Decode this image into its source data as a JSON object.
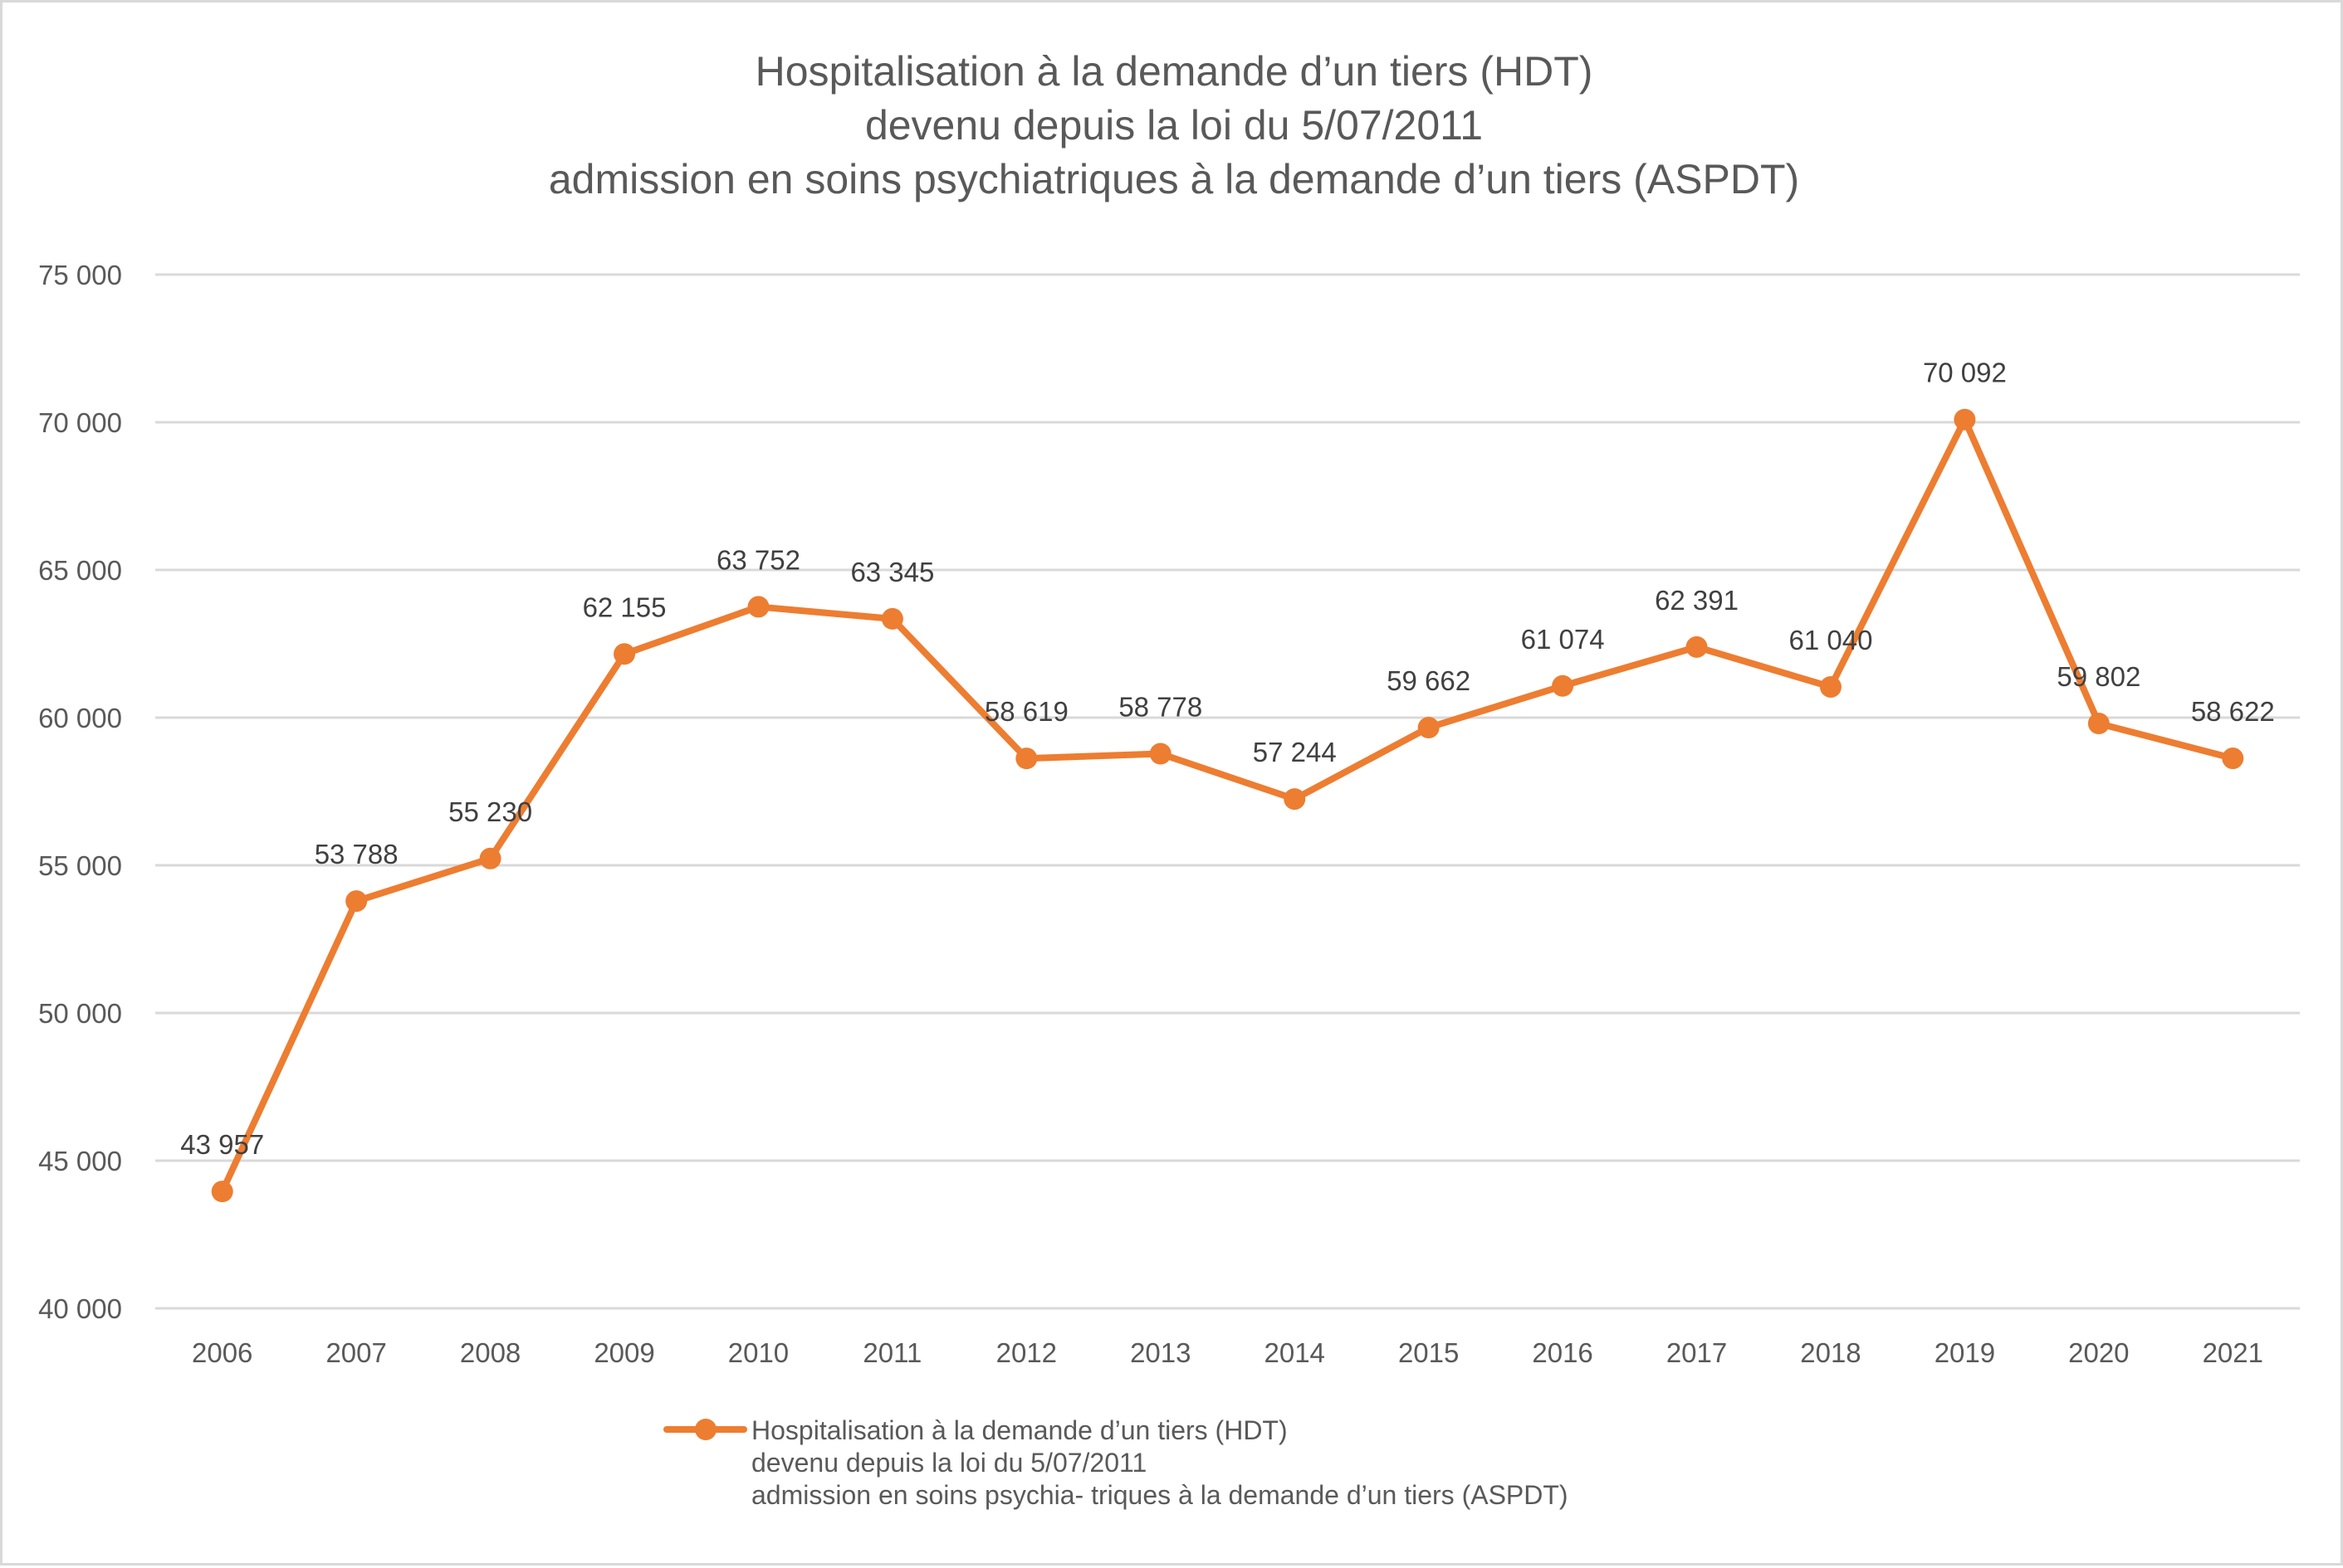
{
  "chart_data": {
    "type": "line",
    "title": [
      "Hospitalisation à la demande d’un tiers (HDT)",
      "devenu depuis la loi du 5/07/2011",
      "admission en soins psychiatriques à la demande d’un tiers (ASPDT)"
    ],
    "xlabel": "",
    "ylabel": "",
    "categories": [
      "2006",
      "2007",
      "2008",
      "2009",
      "2010",
      "2011",
      "2012",
      "2013",
      "2014",
      "2015",
      "2016",
      "2017",
      "2018",
      "2019",
      "2020",
      "2021"
    ],
    "series": [
      {
        "name": "Hospitalisation à la demande d’un tiers (HDT) devenu depuis la loi du 5/07/2011 admission en soins psychia- triques à la demande d’un tiers (ASPDT)",
        "color": "#ED7D31",
        "values": [
          43957,
          53788,
          55230,
          62155,
          63752,
          63345,
          58619,
          58778,
          57244,
          59662,
          61074,
          62391,
          61040,
          70092,
          59802,
          58622
        ],
        "data_labels": [
          "43 957",
          "53 788",
          "55 230",
          "62 155",
          "63 752",
          "63 345",
          "58 619",
          "58 778",
          "57 244",
          "59 662",
          "61 074",
          "62 391",
          "61 040",
          "70 092",
          "59 802",
          "58 622"
        ]
      }
    ],
    "ylim": [
      40000,
      75000
    ],
    "y_ticks": [
      40000,
      45000,
      50000,
      55000,
      60000,
      65000,
      70000,
      75000
    ],
    "y_tick_labels": [
      "40 000",
      "45 000",
      "50 000",
      "55 000",
      "60 000",
      "65 000",
      "70 000",
      "75 000"
    ],
    "grid": "horizontal",
    "legend": {
      "position": "bottom",
      "lines": [
        "Hospitalisation à la demande d’un tiers (HDT)",
        "devenu depuis la loi du 5/07/2011",
        "admission en soins psychia- triques à la demande d’un tiers (ASPDT)"
      ]
    }
  }
}
